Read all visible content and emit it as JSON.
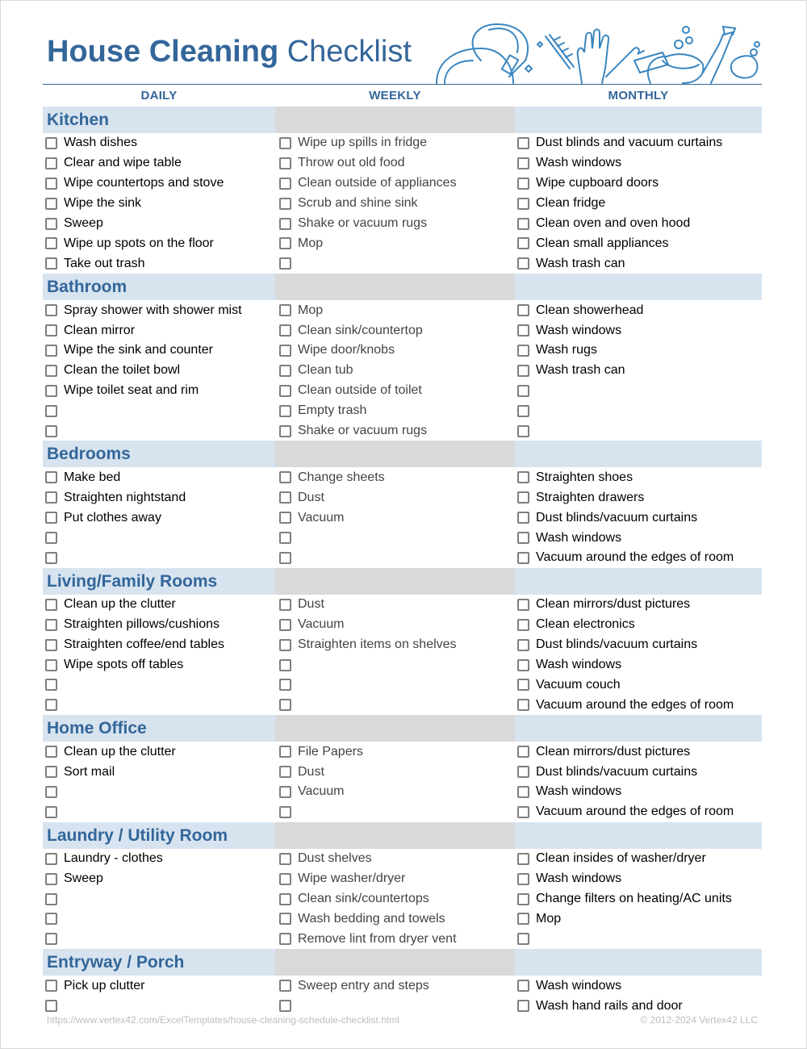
{
  "title": {
    "bold": "House Cleaning",
    "light": "Checklist"
  },
  "columns": {
    "daily": "DAILY",
    "weekly": "WEEKLY",
    "monthly": "MONTHLY"
  },
  "colors": {
    "accent": "#336699",
    "section_bg": "#d7e4f0",
    "weekly_bg": "#d9d9d9"
  },
  "sections": [
    {
      "name": "Kitchen",
      "daily": [
        "Wash dishes",
        "Clear and wipe table",
        "Wipe countertops and stove",
        "Wipe the sink",
        "Sweep",
        "Wipe up spots on the floor",
        "Take out trash"
      ],
      "weekly": [
        "Wipe up spills in fridge",
        "Throw out old food",
        "Clean outside of appliances",
        "Scrub and shine sink",
        "Shake or vacuum rugs",
        "Mop",
        ""
      ],
      "monthly": [
        "Dust blinds and vacuum curtains",
        "Wash windows",
        "Wipe cupboard doors",
        "Clean fridge",
        "Clean oven and oven hood",
        "Clean small appliances",
        "Wash trash can"
      ]
    },
    {
      "name": "Bathroom",
      "daily": [
        "Spray shower with shower mist",
        "Clean mirror",
        "Wipe the sink and counter",
        "Clean the toilet bowl",
        "Wipe toilet seat and rim",
        "",
        ""
      ],
      "weekly": [
        "Mop",
        "Clean sink/countertop",
        "Wipe door/knobs",
        "Clean tub",
        "Clean outside of toilet",
        "Empty trash",
        "Shake or vacuum rugs"
      ],
      "monthly": [
        "Clean showerhead",
        "Wash windows",
        "Wash rugs",
        "Wash trash can",
        "",
        "",
        ""
      ]
    },
    {
      "name": "Bedrooms",
      "daily": [
        "Make bed",
        "Straighten nightstand",
        "Put clothes away",
        "",
        ""
      ],
      "weekly": [
        "Change sheets",
        "Dust",
        "Vacuum",
        "",
        ""
      ],
      "monthly": [
        "Straighten shoes",
        "Straighten drawers",
        "Dust blinds/vacuum curtains",
        "Wash windows",
        "Vacuum around the edges of room"
      ]
    },
    {
      "name": "Living/Family Rooms",
      "daily": [
        "Clean up the clutter",
        "Straighten pillows/cushions",
        "Straighten coffee/end tables",
        "Wipe spots off tables",
        "",
        ""
      ],
      "weekly": [
        "Dust",
        "Vacuum",
        "Straighten items on shelves",
        "",
        "",
        ""
      ],
      "monthly": [
        "Clean mirrors/dust pictures",
        "Clean electronics",
        "Dust blinds/vacuum curtains",
        "Wash windows",
        "Vacuum couch",
        "Vacuum around the edges of room"
      ]
    },
    {
      "name": "Home Office",
      "daily": [
        "Clean up the clutter",
        "Sort mail",
        "",
        ""
      ],
      "weekly": [
        "File Papers",
        "Dust",
        "Vacuum",
        ""
      ],
      "monthly": [
        "Clean mirrors/dust pictures",
        "Dust blinds/vacuum curtains",
        "Wash windows",
        "Vacuum around the edges of room"
      ]
    },
    {
      "name": "Laundry / Utility Room",
      "daily": [
        "Laundry - clothes",
        "Sweep",
        "",
        "",
        ""
      ],
      "weekly": [
        "Dust shelves",
        "Wipe washer/dryer",
        "Clean sink/countertops",
        "Wash bedding and towels",
        "Remove lint from dryer vent"
      ],
      "monthly": [
        "Clean insides of washer/dryer",
        "Wash windows",
        "Change filters on heating/AC units",
        "Mop",
        ""
      ]
    },
    {
      "name": "Entryway / Porch",
      "daily": [
        "Pick up clutter",
        ""
      ],
      "weekly": [
        "Sweep entry and steps",
        ""
      ],
      "monthly": [
        "Wash windows",
        "Wash hand rails and door"
      ]
    }
  ],
  "footer": {
    "url": "https://www.vertex42.com/ExcelTemplates/house-cleaning-schedule-checklist.html",
    "copyright": "© 2012-2024 Vertex42 LLC"
  }
}
